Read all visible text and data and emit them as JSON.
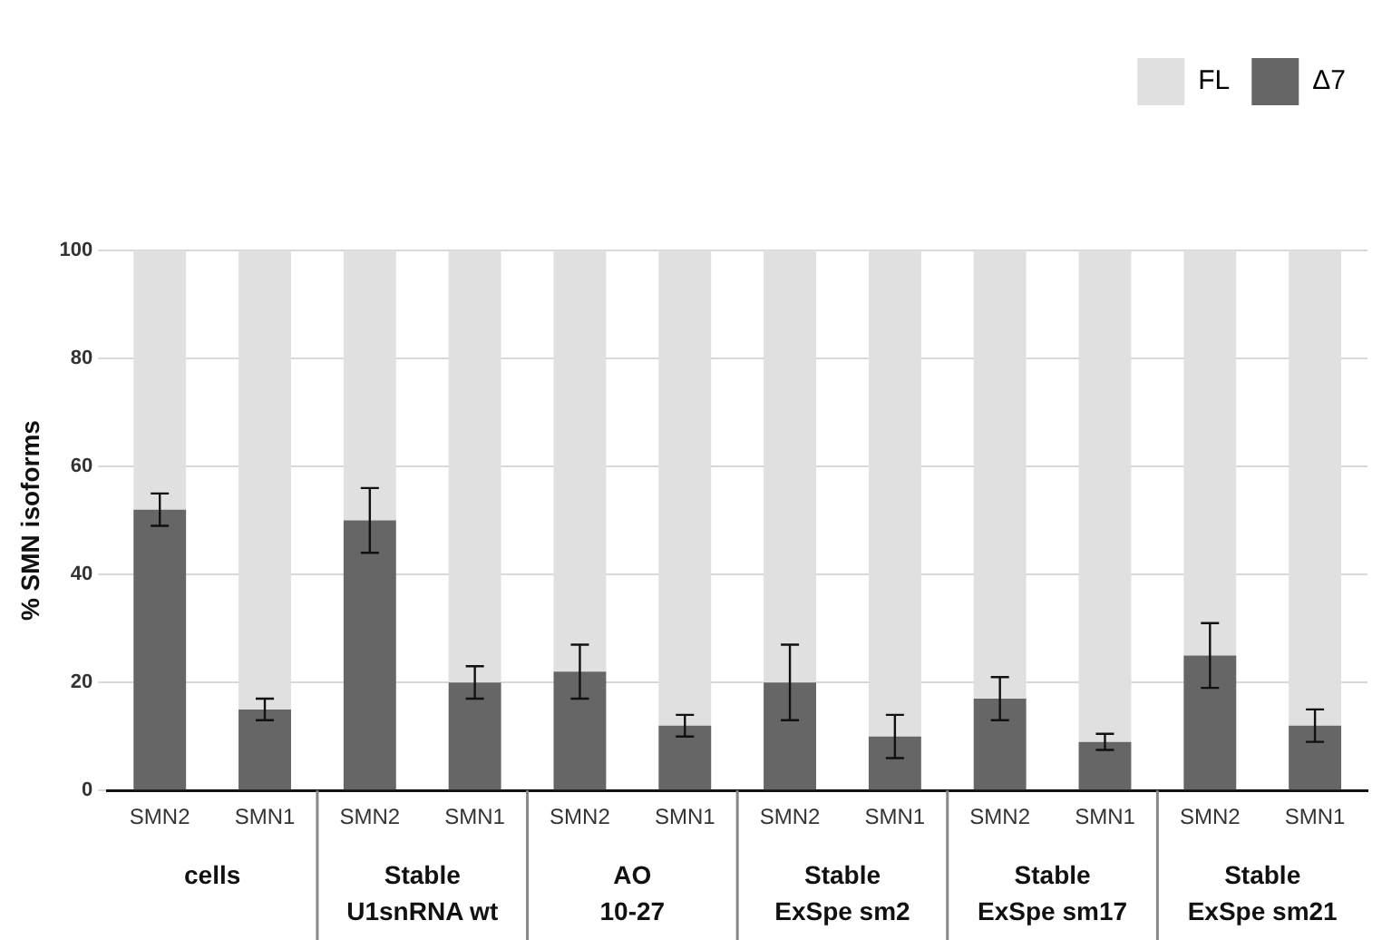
{
  "chart_data": {
    "type": "bar",
    "stacked": true,
    "ylabel": "% SMN isoforms",
    "categories": [
      "SMN2",
      "SMN1",
      "SMN2",
      "SMN1",
      "SMN2",
      "SMN1",
      "SMN2",
      "SMN1",
      "SMN2",
      "SMN1",
      "SMN2",
      "SMN1"
    ],
    "series": [
      {
        "name": "Δ7",
        "color": "#666666",
        "values": [
          52,
          15,
          50,
          20,
          22,
          12,
          20,
          10,
          17,
          9,
          25,
          12
        ],
        "errors": [
          3,
          2,
          6,
          3,
          5,
          2,
          7,
          4,
          4,
          1.5,
          6,
          3
        ]
      },
      {
        "name": "FL",
        "color": "#e0e0e0",
        "values": [
          48,
          85,
          50,
          80,
          78,
          88,
          80,
          90,
          83,
          91,
          75,
          88
        ]
      }
    ],
    "ylim": [
      0,
      100
    ],
    "yticks": [
      0,
      20,
      40,
      60,
      80,
      100
    ],
    "grid": "y",
    "legend": "top right",
    "annotations": [
      "cells",
      "Stable\nU1snRNA wt",
      "AO\n10-27",
      "Stable\nExSpe sm2",
      "Stable\nExSpe sm17",
      "Stable\nExSpe sm21"
    ]
  }
}
